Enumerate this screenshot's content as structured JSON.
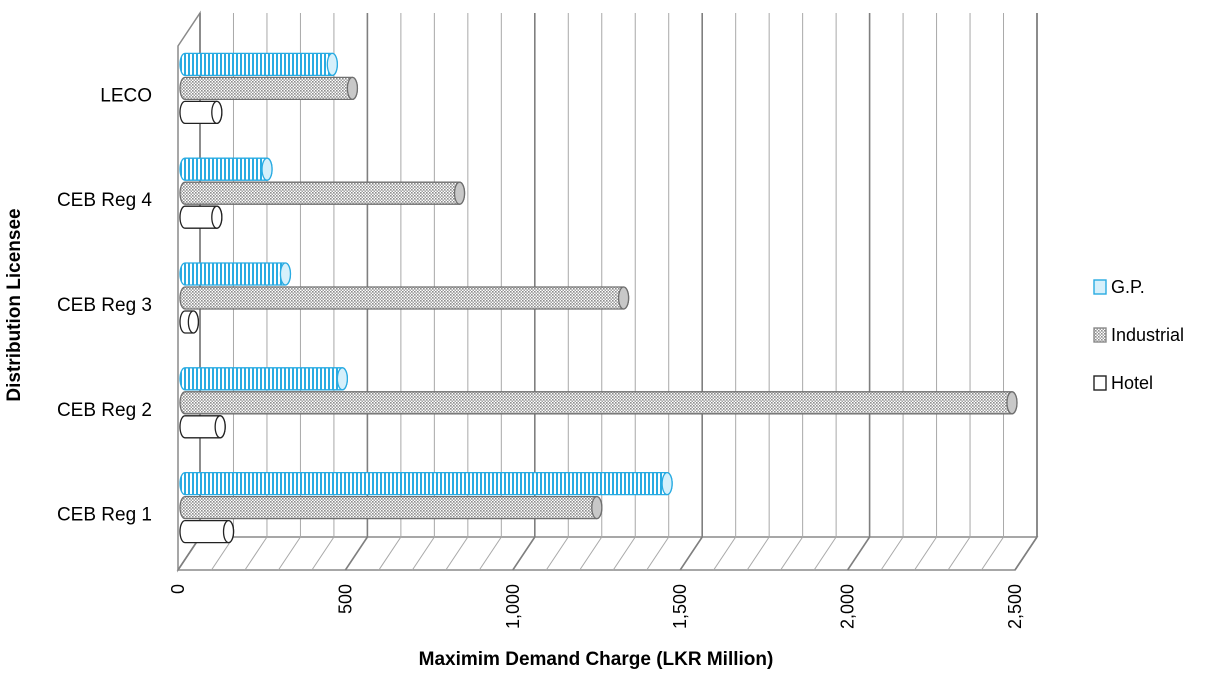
{
  "chart_data": {
    "type": "bar",
    "orientation": "horizontal",
    "style": "3d-cylinder",
    "categories": [
      "CEB Reg 1",
      "CEB Reg 2",
      "CEB Reg 3",
      "CEB Reg 4",
      "LECO"
    ],
    "series": [
      {
        "name": "G.P.",
        "values": [
          1440,
          470,
          300,
          245,
          440
        ],
        "color": "#3BB4E5"
      },
      {
        "name": "Industrial",
        "values": [
          1230,
          2470,
          1310,
          820,
          500
        ],
        "color": "#9E9E9E"
      },
      {
        "name": "Hotel",
        "values": [
          130,
          105,
          25,
          95,
          95
        ],
        "color": "#FFFFFF"
      }
    ],
    "xlabel": "Maximim Demand Charge (LKR Million)",
    "ylabel": "Distribution Licensee",
    "xlim": [
      0,
      2500
    ],
    "xticks": [
      "0",
      "500",
      "1,000",
      "1,500",
      "2,000",
      "2,500"
    ],
    "grid": true,
    "legend_position": "right"
  }
}
